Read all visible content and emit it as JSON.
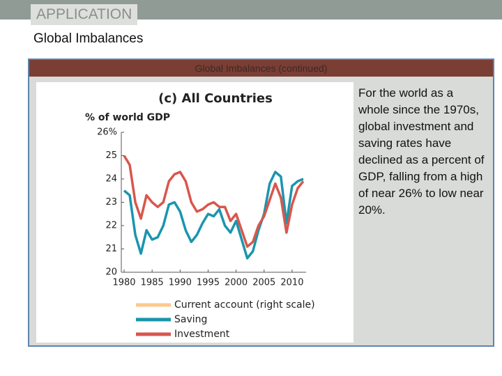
{
  "header": {
    "section": "APPLICATION",
    "title": "Global Imbalances",
    "panel_title": "Global Imbalances (continued)"
  },
  "body_text": "For the world as a whole since the 1970s, global investment and saving rates have declined as a percent of GDP, falling from a high of near 26% to low near 20%.",
  "chart_data": {
    "type": "line",
    "title": "(c) All Countries",
    "y_label": "% of world GDP",
    "x": [
      1980,
      1981,
      1982,
      1983,
      1984,
      1985,
      1986,
      1987,
      1988,
      1989,
      1990,
      1991,
      1992,
      1993,
      1994,
      1995,
      1996,
      1997,
      1998,
      1999,
      2000,
      2001,
      2002,
      2003,
      2004,
      2005,
      2006,
      2007,
      2008,
      2009,
      2010,
      2011,
      2012
    ],
    "xlim": [
      1979.5,
      2012.5
    ],
    "xticks": [
      1980,
      1985,
      1990,
      1995,
      2000,
      2005,
      2010
    ],
    "ylim": [
      20,
      26
    ],
    "yticks": [
      20,
      21,
      22,
      23,
      24,
      25,
      {
        "value": 26,
        "label": "26%"
      }
    ],
    "series": [
      {
        "name": "Current account (right scale)",
        "color": "#fdc98c",
        "values": [
          null,
          null,
          null,
          null,
          null,
          null,
          null,
          null,
          null,
          null,
          null,
          null,
          null,
          null,
          null,
          null,
          null,
          null,
          null,
          null,
          null,
          null,
          null,
          null,
          null,
          null,
          null,
          null,
          null,
          null,
          null,
          null,
          null
        ]
      },
      {
        "name": "Saving",
        "color": "#1a95ad",
        "values": [
          23.5,
          23.3,
          21.6,
          20.8,
          21.8,
          21.4,
          21.5,
          22.0,
          22.9,
          23.0,
          22.6,
          21.8,
          21.3,
          21.6,
          22.1,
          22.5,
          22.4,
          22.7,
          22.0,
          21.7,
          22.2,
          21.4,
          20.6,
          20.9,
          21.8,
          22.5,
          23.8,
          24.3,
          24.1,
          22.1,
          23.7,
          23.9,
          24.0
        ]
      },
      {
        "name": "Investment",
        "color": "#d9564d",
        "values": [
          25.0,
          24.6,
          23.0,
          22.3,
          23.3,
          23.0,
          22.8,
          23.0,
          23.9,
          24.2,
          24.3,
          23.9,
          23.0,
          22.6,
          22.7,
          22.9,
          23.0,
          22.8,
          22.8,
          22.2,
          22.5,
          21.8,
          21.1,
          21.3,
          22.0,
          22.4,
          23.1,
          23.8,
          23.2,
          21.7,
          22.9,
          23.6,
          23.9
        ]
      }
    ]
  }
}
